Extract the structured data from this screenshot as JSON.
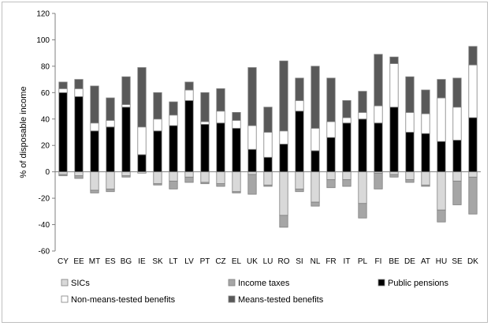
{
  "chart_data": {
    "type": "bar",
    "stacked": true,
    "ylabel": "% of disposable income",
    "ylim": [
      -60,
      120
    ],
    "yticks": [
      -60,
      -40,
      -20,
      0,
      20,
      40,
      60,
      80,
      100,
      120
    ],
    "grid": false,
    "legend_position": "bottom",
    "categories": [
      "CY",
      "EE",
      "MT",
      "ES",
      "BG",
      "IE",
      "SK",
      "LT",
      "LV",
      "PT",
      "CZ",
      "EL",
      "UK",
      "LU",
      "RO",
      "SI",
      "NL",
      "FR",
      "IT",
      "PL",
      "FI",
      "BE",
      "DE",
      "AT",
      "HU",
      "SE",
      "DK"
    ],
    "series": [
      {
        "name": "SICs",
        "color": "#d9d9d9",
        "values": [
          -2,
          -3,
          -14,
          -13,
          -3,
          -1,
          -9,
          -7,
          -4,
          -8,
          -9,
          -15,
          -2,
          -10,
          -33,
          -13,
          -23,
          -6,
          -6,
          -24,
          -1,
          -2,
          -6,
          -10,
          -29,
          -7,
          -4
        ]
      },
      {
        "name": "Income taxes",
        "color": "#a6a6a6",
        "values": [
          -1,
          -2,
          -2,
          -2,
          -1,
          0,
          -1,
          -6,
          -4,
          -1,
          -2,
          -1,
          -15,
          -1,
          -9,
          -2,
          -3,
          -6,
          -5,
          -11,
          -12,
          -2,
          -2,
          -1,
          -9,
          -18,
          -28
        ]
      },
      {
        "name": "Public pensions",
        "color": "#000000",
        "values": [
          60,
          57,
          31,
          34,
          49,
          13,
          31,
          35,
          54,
          36,
          37,
          33,
          17,
          11,
          21,
          46,
          16,
          26,
          37,
          40,
          37,
          49,
          30,
          29,
          23,
          24,
          41
        ]
      },
      {
        "name": "Non-means-tested benefits",
        "color": "#ffffff",
        "values": [
          3,
          6,
          6,
          5,
          2,
          21,
          9,
          8,
          8,
          2,
          9,
          6,
          18,
          19,
          10,
          8,
          17,
          12,
          4,
          5,
          13,
          33,
          15,
          15,
          33,
          25,
          40
        ]
      },
      {
        "name": "Means-tested benefits",
        "color": "#595959",
        "values": [
          5,
          7,
          28,
          17,
          21,
          45,
          20,
          10,
          6,
          22,
          17,
          6,
          44,
          19,
          53,
          17,
          47,
          33,
          13,
          16,
          39,
          5,
          27,
          18,
          14,
          22,
          14
        ]
      }
    ]
  }
}
